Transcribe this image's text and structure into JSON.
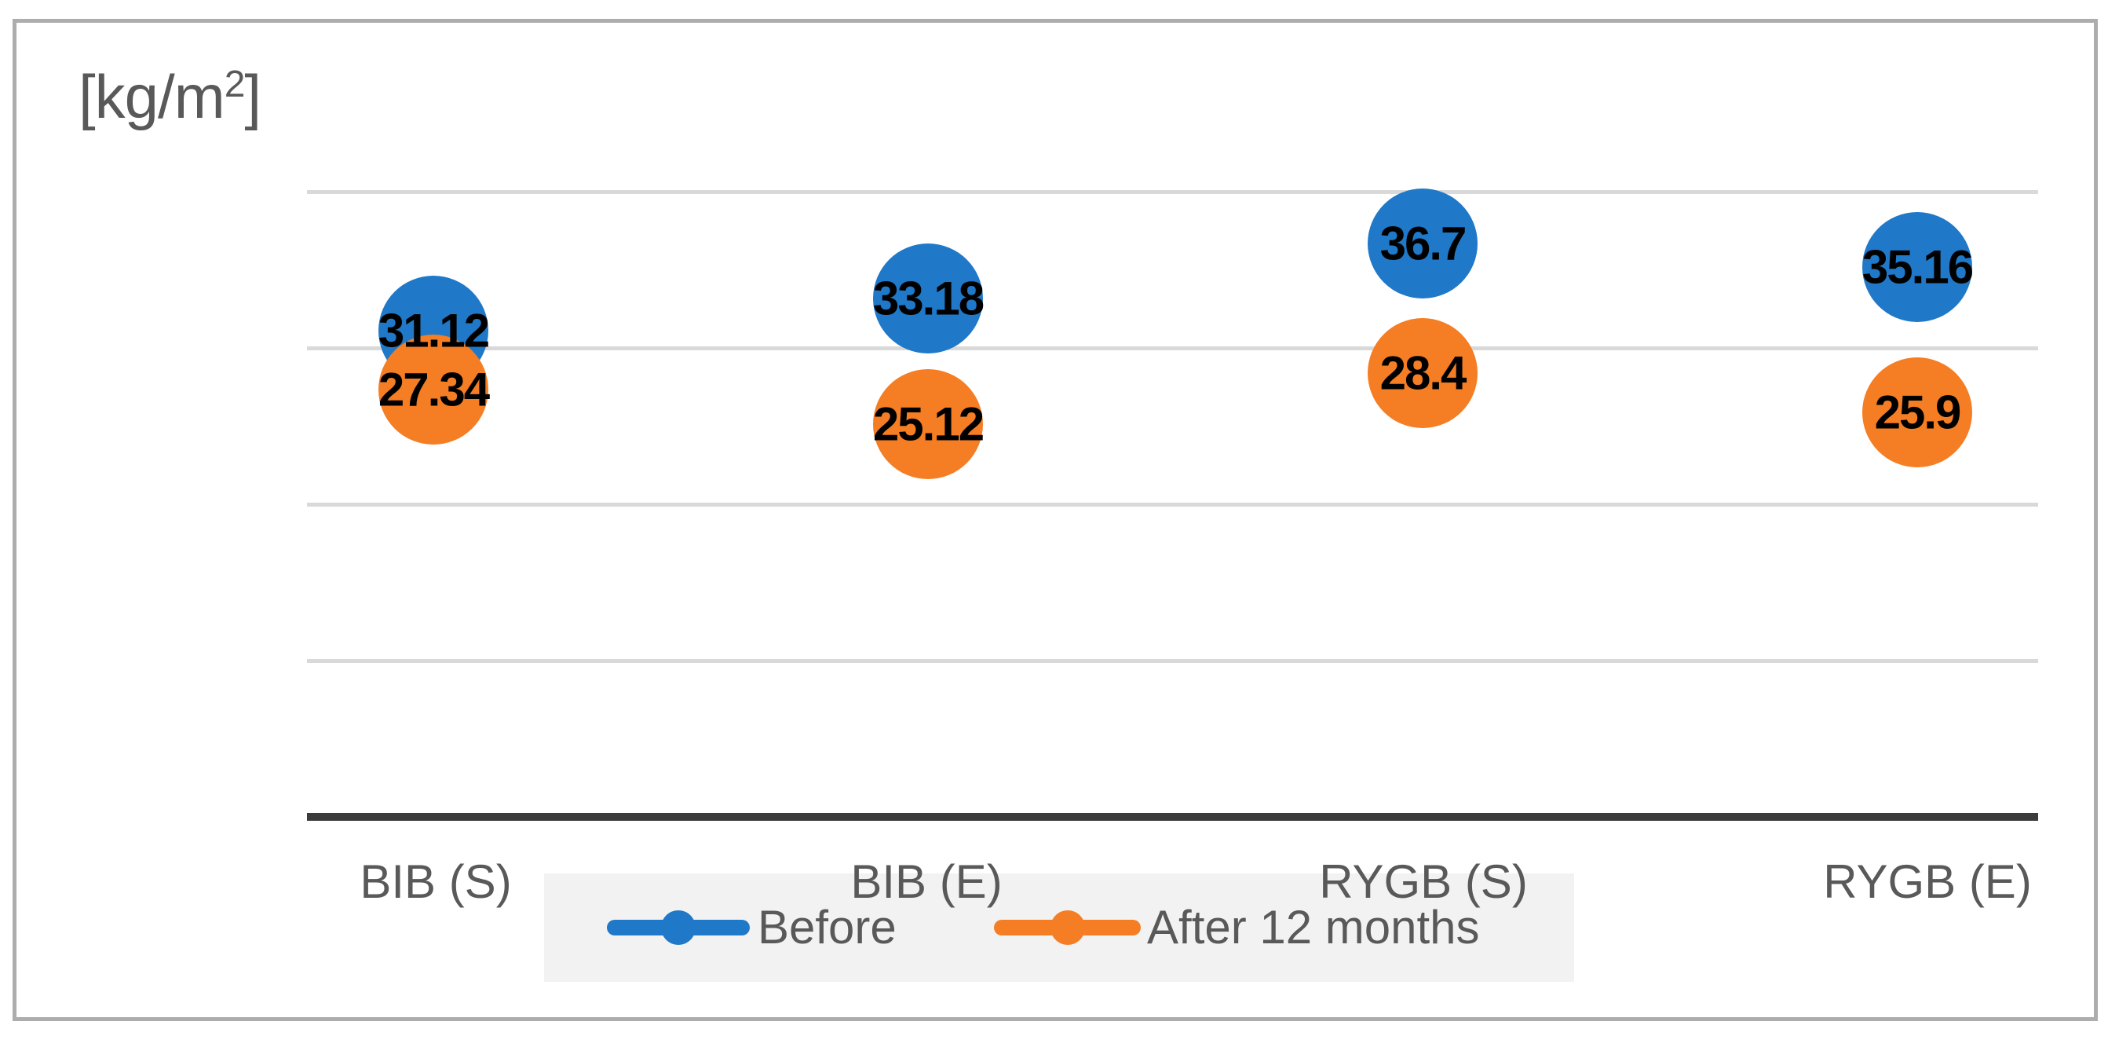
{
  "unit_label": {
    "prefix": "[kg/m",
    "superscript": "2",
    "suffix": "]"
  },
  "colors": {
    "before": "#1F78C8",
    "after": "#F57D23",
    "series_keys": [
      "before",
      "after"
    ],
    "gridline": "#D9D9D9",
    "axis_line": "#3B3B3B",
    "frame_border": "#ADADAD",
    "text_gray": "#595959",
    "value_label": "#000000",
    "legend_background": "#F2F2F2"
  },
  "legend": {
    "items": [
      {
        "label": "Before",
        "color": "#1F78C8"
      },
      {
        "label": "After 12 months",
        "color": "#F57D23"
      }
    ]
  },
  "chart_data": {
    "type": "scatter",
    "title": "",
    "xlabel": "",
    "ylabel": "[kg/m2]",
    "categories": [
      "BIB (S)",
      "BIB (E)",
      "RYGB (S)",
      "RYGB (E)"
    ],
    "series": [
      {
        "name": "Before",
        "values": [
          31.12,
          33.18,
          36.7,
          35.16
        ]
      },
      {
        "name": "After 12 months",
        "values": [
          27.34,
          25.12,
          28.4,
          25.9
        ]
      }
    ],
    "ylim": [
      0,
      45
    ],
    "gridlines": [
      10,
      20,
      30,
      40
    ],
    "grid": "horizontal-only",
    "y_tick_labels_shown": false,
    "marker": "circle",
    "data_labels": "centered-on-marker",
    "legend_position": "bottom-center"
  }
}
